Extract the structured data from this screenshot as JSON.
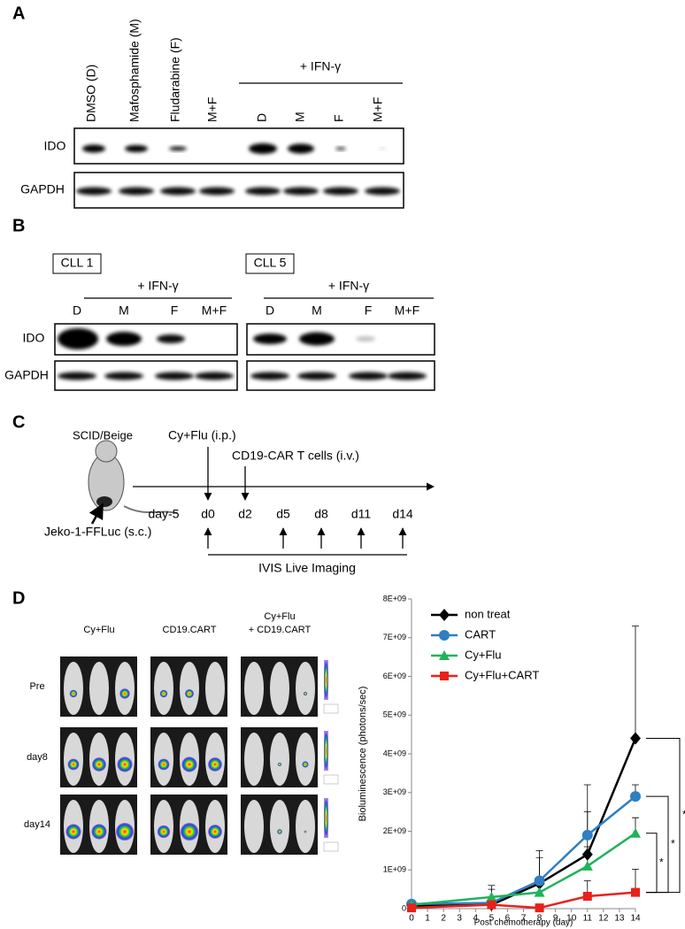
{
  "panel_a": {
    "label": "A",
    "lanes": [
      "DMSO (D)",
      "Mafosphamide (M)",
      "Fludarabine (F)",
      "M+F",
      "D",
      "M",
      "F",
      "M+F"
    ],
    "treatment": "+ IFN-γ",
    "rows": [
      "IDO",
      "GAPDH"
    ]
  },
  "panel_b": {
    "label": "B",
    "groups": [
      {
        "name": "CLL 1",
        "treatment": "+ IFN-γ",
        "lanes": [
          "D",
          "M",
          "F",
          "M+F"
        ]
      },
      {
        "name": "CLL 5",
        "treatment": "+ IFN-γ",
        "lanes": [
          "D",
          "M",
          "F",
          "M+F"
        ]
      }
    ],
    "rows": [
      "IDO",
      "GAPDH"
    ]
  },
  "panel_c": {
    "label": "C",
    "strain": "SCID/Beige",
    "chemo": "Cy+Flu (i.p.)",
    "cells": "CD19-CAR T cells (i.v.)",
    "days": [
      "day-5",
      "d0",
      "d2",
      "d5",
      "d8",
      "d11",
      "d14"
    ],
    "tumor": "Jeko-1-FFLuc (s.c.)",
    "imaging": "IVIS  Live Imaging"
  },
  "panel_d": {
    "label": "D",
    "groups": [
      [
        "Cy+Flu"
      ],
      [
        "CD19.CART"
      ],
      [
        "Cy+Flu",
        "+ CD19.CART"
      ]
    ],
    "timepoints": [
      "Pre",
      "day8",
      "day14"
    ]
  },
  "chart_data": {
    "type": "line",
    "x_label": "Post chemotherapy (day)",
    "y_label": "Bioluminescence (photons/sec)",
    "x": [
      0,
      5,
      8,
      11,
      14
    ],
    "series": [
      {
        "name": "non treat",
        "color": "#000000",
        "marker": "diamond",
        "values": [
          80000000,
          100000000,
          650000000,
          1400000000,
          4400000000
        ],
        "errors": [
          null,
          400000000,
          850000000,
          1100000000,
          2900000000
        ]
      },
      {
        "name": "CART",
        "color": "#2f7fc1",
        "marker": "circle",
        "values": [
          120000000,
          150000000,
          720000000,
          1900000000,
          2900000000
        ],
        "errors": [
          null,
          null,
          600000000,
          1300000000,
          300000000
        ]
      },
      {
        "name": "Cy+Flu",
        "color": "#1fb45a",
        "marker": "triangle",
        "values": [
          100000000,
          300000000,
          420000000,
          1100000000,
          1950000000
        ],
        "errors": [
          null,
          300000000,
          300000000,
          500000000,
          400000000
        ]
      },
      {
        "name": "Cy+Flu+CART",
        "color": "#e8211b",
        "marker": "square",
        "values": [
          20000000,
          100000000,
          20000000,
          320000000,
          420000000
        ],
        "errors": [
          null,
          null,
          null,
          400000000,
          600000000
        ]
      }
    ],
    "xlim": [
      0,
      14
    ],
    "xticks": [
      0,
      1,
      2,
      3,
      4,
      5,
      6,
      7,
      8,
      9,
      10,
      11,
      12,
      13,
      14
    ],
    "ylim": [
      0,
      8000000000
    ],
    "yticks": [
      0,
      {
        "value": 1000000000,
        "label": "1E+09"
      },
      {
        "value": 2000000000,
        "label": "2E+09"
      },
      {
        "value": 3000000000,
        "label": "3E+09"
      },
      {
        "value": 4000000000,
        "label": "4E+09"
      },
      {
        "value": 5000000000,
        "label": "5E+09"
      },
      {
        "value": 6000000000,
        "label": "6E+09"
      },
      {
        "value": 7000000000,
        "label": "7E+09"
      },
      {
        "value": 8000000000,
        "label": "8E+09"
      }
    ],
    "legend": "upper left",
    "annotations": [
      "*",
      "*",
      "*"
    ]
  }
}
